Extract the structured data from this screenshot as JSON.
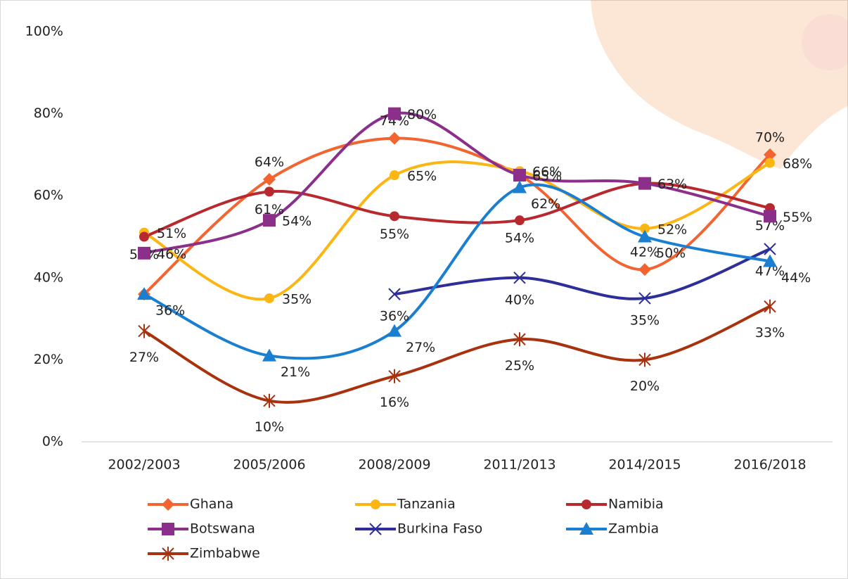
{
  "chart_data": {
    "type": "line",
    "categories": [
      "2002/2003",
      "2005/2006",
      "2008/2009",
      "2011/2013",
      "2014/2015",
      "2016/2018"
    ],
    "ylim": [
      0,
      100
    ],
    "yticks": [
      {
        "value": 0,
        "label": "0%"
      },
      {
        "value": 20,
        "label": "20%"
      },
      {
        "value": 40,
        "label": "40%"
      },
      {
        "value": 60,
        "label": "60%"
      },
      {
        "value": 80,
        "label": "80%"
      },
      {
        "value": 100,
        "label": "100%"
      }
    ],
    "grid": false,
    "smooth": true,
    "legend": "bottom",
    "series": [
      {
        "name": "Ghana",
        "color": "#f26430",
        "marker": "diamond",
        "values": [
          36,
          64,
          74,
          65,
          42,
          70
        ],
        "value_labels": [
          null,
          "64%",
          "74%",
          null,
          "42%",
          "70%"
        ]
      },
      {
        "name": "Tanzania",
        "color": "#fbb614",
        "marker": "circle",
        "values": [
          51,
          35,
          65,
          66,
          52,
          68
        ],
        "value_labels": [
          "51%",
          "35%",
          "65%",
          "66%",
          "52%",
          "68%"
        ]
      },
      {
        "name": "Namibia",
        "color": "#b8292f",
        "marker": "circle",
        "values": [
          50,
          61,
          55,
          54,
          63,
          57
        ],
        "value_labels": [
          "50%",
          "61%",
          "55%",
          "54%",
          null,
          "57%"
        ]
      },
      {
        "name": "Botswana",
        "color": "#8b2f8b",
        "marker": "square",
        "values": [
          46,
          54,
          80,
          65,
          63,
          55
        ],
        "value_labels": [
          "46%",
          "54%",
          "80%",
          "65%",
          "63%",
          "55%"
        ]
      },
      {
        "name": "Burkina Faso",
        "color": "#2e2e9a",
        "marker": "x",
        "values": [
          null,
          null,
          36,
          40,
          35,
          47
        ],
        "value_labels": [
          null,
          null,
          "36%",
          "40%",
          "35%",
          "47%"
        ]
      },
      {
        "name": "Zambia",
        "color": "#1b7fd1",
        "marker": "triangle",
        "values": [
          36,
          21,
          27,
          62,
          50,
          44
        ],
        "value_labels": [
          "36%",
          "21%",
          "27%",
          "62%",
          "50%",
          "44%"
        ]
      },
      {
        "name": "Zimbabwe",
        "color": "#a8320e",
        "marker": "star",
        "values": [
          27,
          10,
          16,
          25,
          20,
          33
        ],
        "value_labels": [
          "27%",
          "10%",
          "16%",
          "25%",
          "20%",
          "33%"
        ]
      }
    ]
  }
}
